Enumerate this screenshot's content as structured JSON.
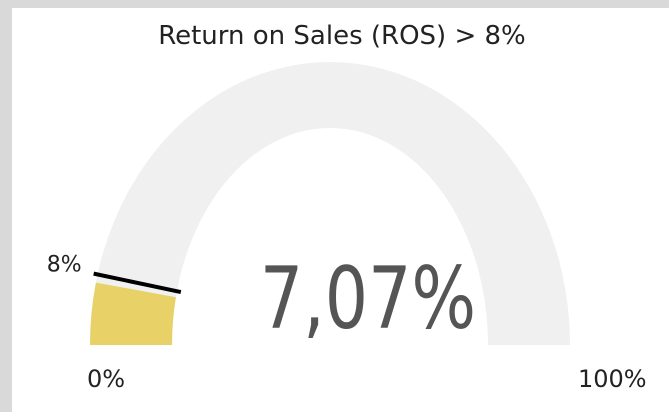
{
  "chart_data": {
    "type": "gauge",
    "title": "Return on Sales (ROS) > 8%",
    "value": 7.07,
    "value_label": "7,07%",
    "ylim": [
      0,
      100
    ],
    "yticks": [
      {
        "value": 0,
        "label": "0%"
      },
      {
        "value": 100,
        "label": "100%"
      }
    ],
    "target": {
      "value": 8,
      "label": "8%"
    },
    "color": "#e8d166",
    "track_color": "#f0f0f0",
    "target_color": "#000000"
  }
}
